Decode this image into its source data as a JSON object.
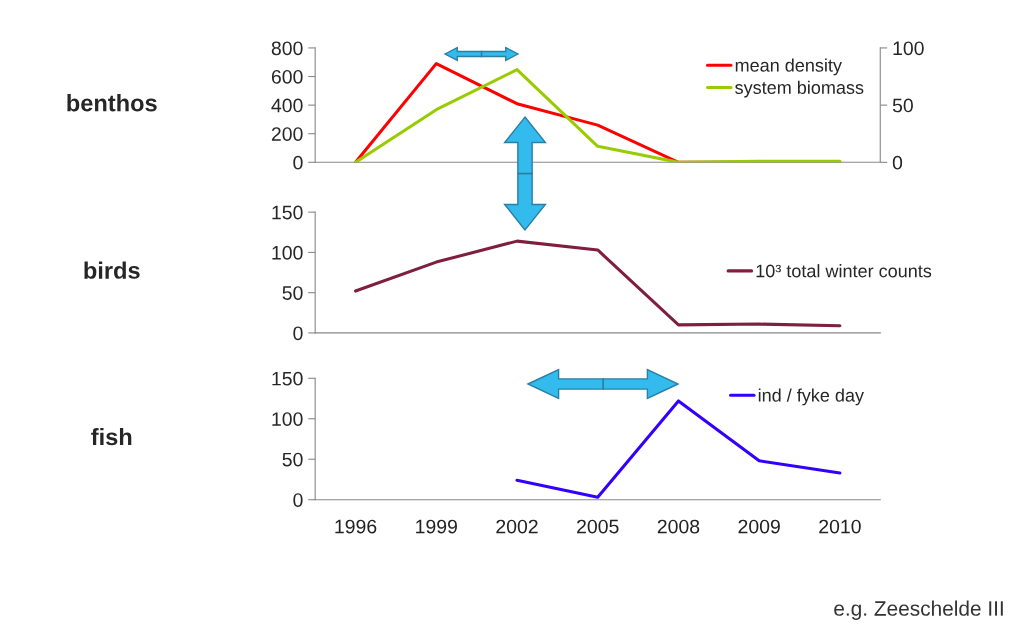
{
  "chart_data": [
    {
      "type": "line",
      "title": "benthos",
      "categories": [
        "1996",
        "1999",
        "2002",
        "2005",
        "2008",
        "2009",
        "2010"
      ],
      "ylim": [
        0,
        800
      ],
      "yticks": [
        0,
        200,
        400,
        600,
        800
      ],
      "y2lim": [
        0,
        100
      ],
      "y2ticks": [
        0,
        50,
        100
      ],
      "tick_labels": "y",
      "legend": "top right",
      "grid": false,
      "series": [
        {
          "name": "mean density",
          "color": "#ff0000",
          "values": [
            0,
            690,
            410,
            260,
            0,
            0,
            0
          ]
        },
        {
          "name": "system biomass",
          "color": "#99cc00",
          "axis": "y2",
          "values": [
            0,
            46,
            81,
            14,
            0,
            1,
            1
          ]
        }
      ]
    },
    {
      "type": "line",
      "title": "birds",
      "categories": [
        "1996",
        "1999",
        "2002",
        "2005",
        "2008",
        "2009",
        "2010"
      ],
      "ylim": [
        0,
        150
      ],
      "yticks": [
        0,
        50,
        100,
        150
      ],
      "tick_labels": "y",
      "legend": "right",
      "grid": false,
      "series": [
        {
          "name": "10³ total winter counts",
          "color": "#7f1f3f",
          "values": [
            52,
            88,
            114,
            103,
            10,
            11,
            9
          ]
        }
      ]
    },
    {
      "type": "line",
      "title": "fish",
      "categories": [
        "1996",
        "1999",
        "2002",
        "2005",
        "2008",
        "2009",
        "2010"
      ],
      "ylim": [
        0,
        150
      ],
      "yticks": [
        0,
        50,
        100,
        150
      ],
      "legend": "top right",
      "grid": false,
      "annotations": [
        "e.g. Zeeschelde III"
      ],
      "series": [
        {
          "name": "ind / fyke day",
          "color": "#3300ff",
          "values": [
            null,
            null,
            24,
            3,
            122,
            48,
            33
          ]
        }
      ]
    }
  ]
}
